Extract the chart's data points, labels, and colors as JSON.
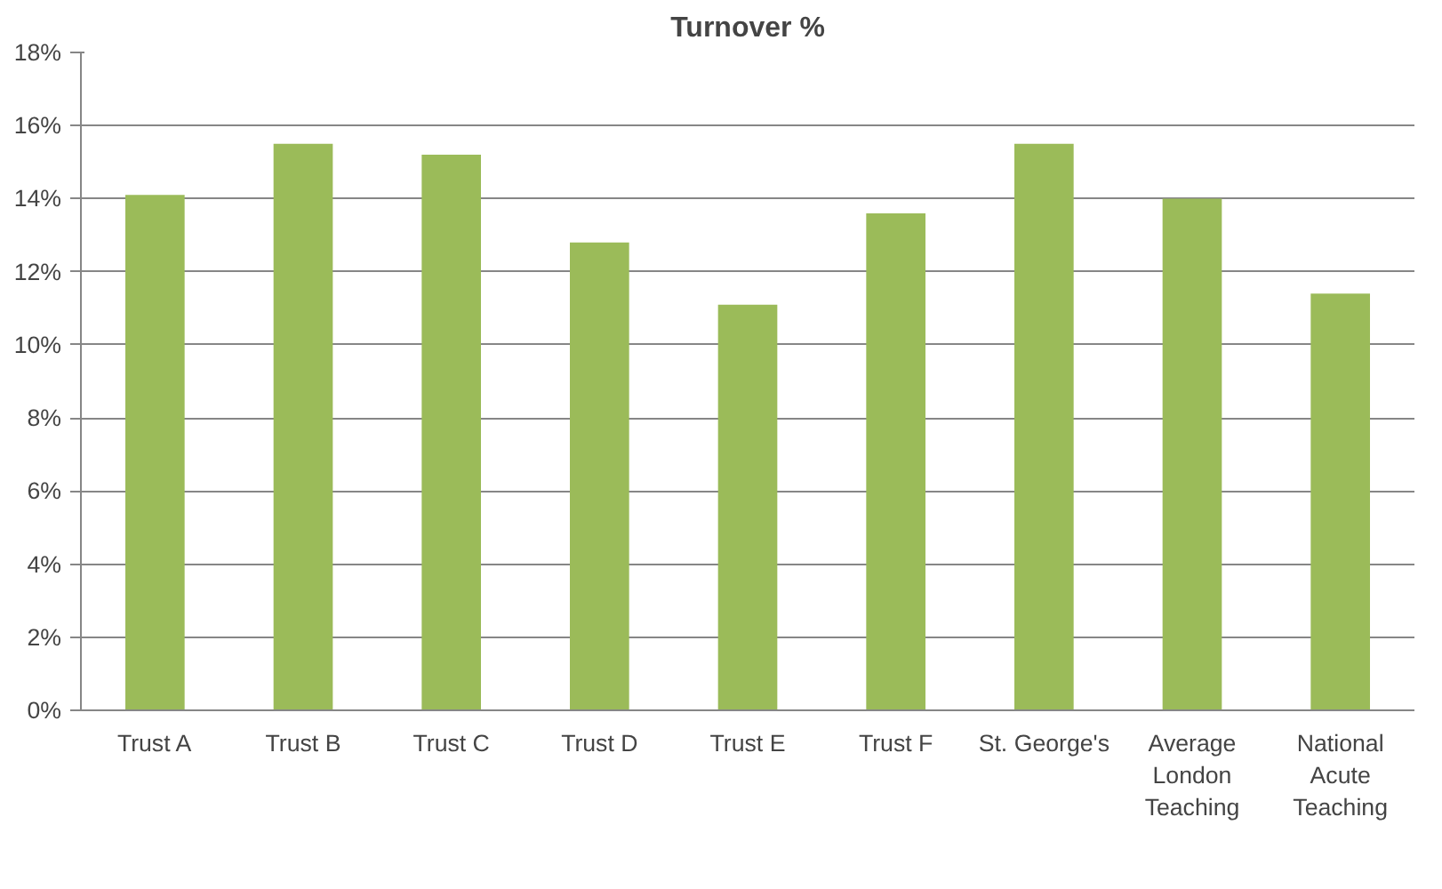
{
  "chart_data": {
    "type": "bar",
    "title": "Turnover %",
    "categories": [
      "Trust A",
      "Trust B",
      "Trust C",
      "Trust D",
      "Trust E",
      "Trust F",
      "St. George's",
      "Average London Teaching",
      "National Acute Teaching"
    ],
    "values": [
      14.1,
      15.5,
      15.2,
      12.8,
      11.1,
      13.6,
      15.5,
      14.0,
      11.4
    ],
    "color": "#9bbb59",
    "ylim": [
      0,
      18
    ],
    "yticks": [
      {
        "value": 0,
        "label": "0%"
      },
      {
        "value": 2,
        "label": "2%"
      },
      {
        "value": 4,
        "label": "4%"
      },
      {
        "value": 6,
        "label": "6%"
      },
      {
        "value": 8,
        "label": "8%"
      },
      {
        "value": 10,
        "label": "10%"
      },
      {
        "value": 12,
        "label": "12%"
      },
      {
        "value": 14,
        "label": "14%"
      },
      {
        "value": 16,
        "label": "16%"
      },
      {
        "value": 18,
        "label": "18%"
      }
    ],
    "grid": "y"
  }
}
